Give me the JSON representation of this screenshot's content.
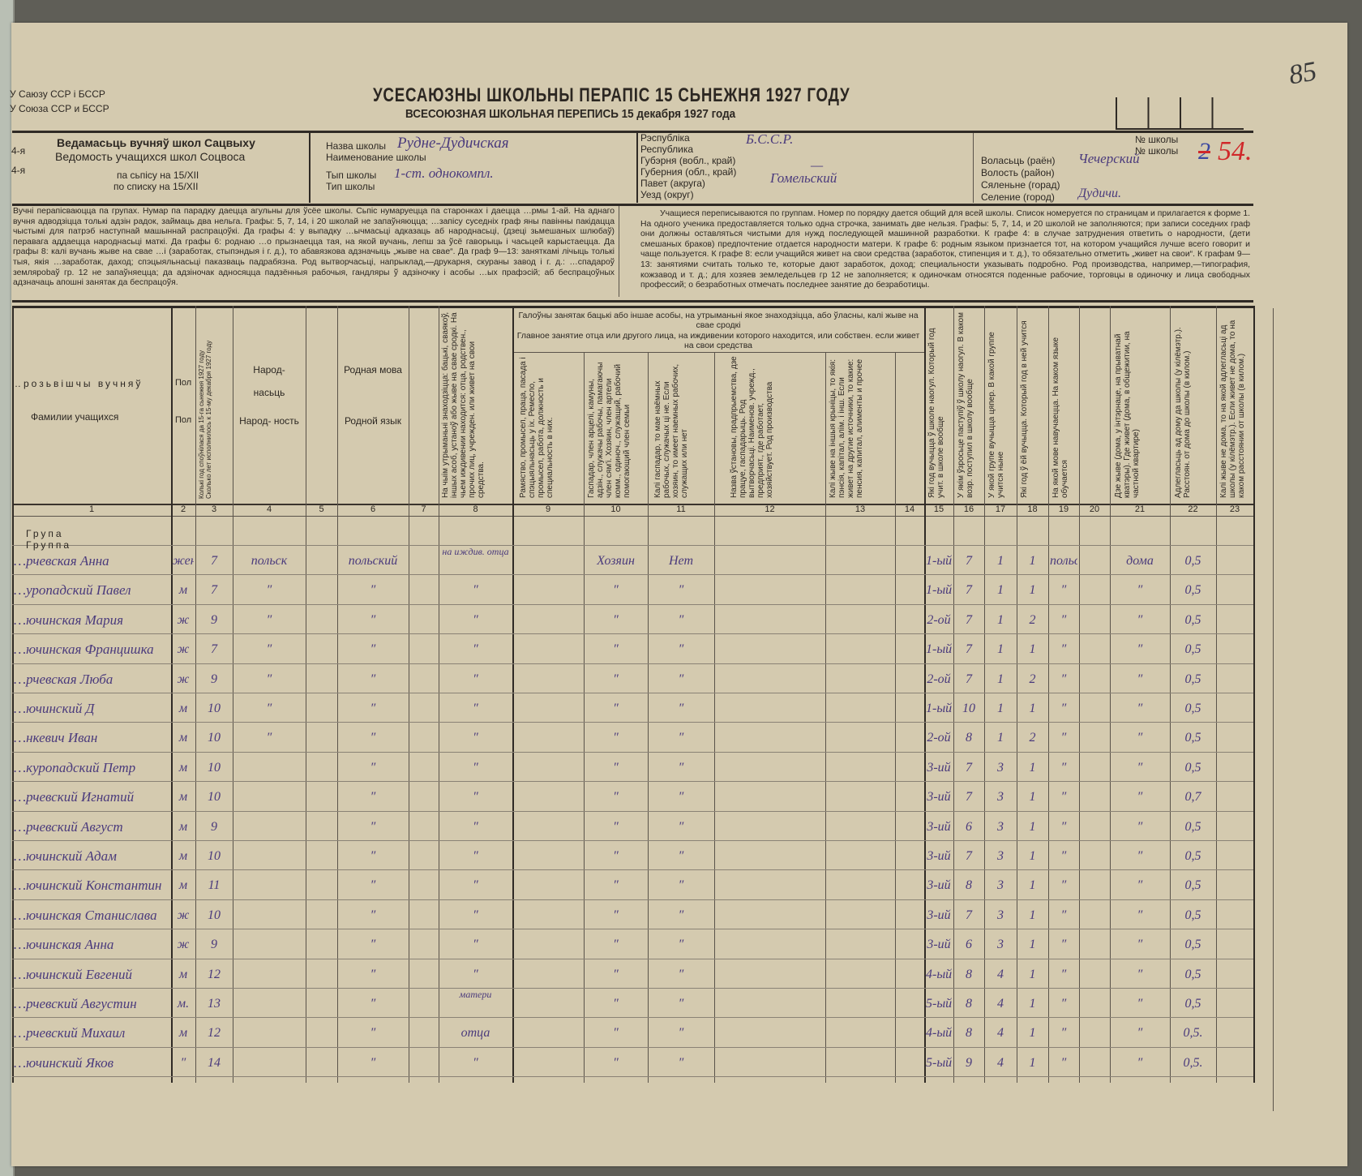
{
  "header": {
    "union_by": "У Саюзу ССР і БССР",
    "union_ru": "У Союза ССР и БССР",
    "title_by": "УСЕСАЮЗНЫ ШКОЛЬНЫ ПЕРАПІС 15 СЬНЕЖНЯ 1927 ГОДУ",
    "title_ru": "ВСЕСОЮЗНАЯ ШКОЛЬНАЯ ПЕРЕПИСЬ 15 декабря 1927 года",
    "page_number": "85"
  },
  "form": {
    "margin_by": "4-я",
    "margin_ru": "4-я",
    "label_by": "Ведамасьць вучняў школ Сацвыху",
    "label_ru": "Ведомость учащихся школ Соцвоса",
    "list_by": "па сьпісу на 15/XII",
    "list_ru": "по списку на 15/XII"
  },
  "school": {
    "name_by": "Назва школы",
    "name_ru": "Наименование школы",
    "name_value": "Рудне-Дудичская",
    "type_by": "Тып школы",
    "type_ru": "Тип школы",
    "type_value": "1-ст. однокомпл."
  },
  "region": {
    "republic_by": "Рэспубліка",
    "republic_ru": "Республика",
    "republic_value": "Б.С.С.Р.",
    "gub_by": "Губэрня (вобл., край)",
    "gub_ru": "Губерния (обл., край)",
    "gub_value": "—",
    "povet_by": "Павет (акруга)",
    "povet_ru": "Уезд (округ)",
    "povet_value": "Гомельский"
  },
  "locality": {
    "no_by": "№ школы",
    "no_ru": "№ школы",
    "no_struck": "2",
    "no_value": "54.",
    "volost_by": "Воласьць (раён)",
    "volost_ru": "Волость (район)",
    "volost_value": "Чечерский",
    "village_by": "Сяленьне (горад)",
    "village_ru": "Селение (город)",
    "village_value": "Дудичи."
  },
  "instructions": {
    "by": "Вучні перапісваюцца па групах. Нумар па парадку даецца агульны для ўсёе школы. Сьпіс нумаруецца па старонках і даецца …рмы 1-ай. На аднаго вучня адводзіцца толькі адзін радок, займаць два нельга. Графы: 5, 7, 14, і 20 школай не запаўняюцца; …запісу суседніх граф яны павінны пакідацца чыстымі для патрэб наступнай машыннай распрацоўкі. Да графы 4: у выпадку …ычмасьці адказаць аб народнасьці, (дзеці зьмешаных шлюбаў) перавага аддаецца народнасьці маткі. Да графы 6: роднаю …о прызнаецца тая, на якой вучань, лепш за ўсё гаворыць і часьцей карыстаецца. Да графы 8: калі вучань жыве на свае …і (заработак, стыпэндыя і г. д.), то абавязкова адзначыць „жыве на свае“. Да граф 9—13: заняткамі лічыць толькі тыя, якія …заработак, даход; спэцыяльнасьці паказваць падрабязна. Род вытворчасьці, напрыклад,—друкарня, скураны завод і г. д.: …спадароў землярobаў гр. 12 не запаўняецца; да адзіночак адносяцца падзённыя рабочыя, гандляры ў адзіночку і асобы …ых прафэсій; аб беспрацоўных адзначаць апошні занятак да беспрацоўя.",
    "ru": "Учащиеся переписываются по группам. Номер по порядку дается общий для всей школы. Список номеруется по страницам и прилагается к форме 1. На одного ученика предоставляется только одна строчка, занимать две нельзя. Графы: 5, 7, 14, и 20 школой не заполняются; при записи соседних граф они должны оставляться чистыми для нужд последующей машинной разработки. К графе 4: в случае затруднения ответить о народности, (дети смешаных браков) предпочтение отдается народности матери. К графе 6: родным языком признается тот, на котором учащийся лучше всего говорит и чаще пользуется. К графе 8: если учащийся живет на свои средства (заработок, стипенция и т. д.), то обязательно отметить „живет на свои“. К графам 9—13: занятиями считать только те, которые дают заработок, доход; специальности указывать подробно. Род производства, например,—типография, кожзавод и т. д.; для хозяев земледельцев гр 12 не заполняется; к одиночкам относятся поденные рабочие, торговцы в одиночку и лица свободных профессий; о безработных отмечать последнее занятие до безработицы."
  },
  "columns": {
    "c1_by": "…розьвішчы вучняў",
    "c1_ru": "Фамилии учащихся",
    "c2_by": "Пол",
    "c2_ru": "Пол",
    "c3": "Колькі год споўнілася да 15-га сьнежня 1927 году Сколько лет исполнилось к 15-му декабря 1927 году",
    "c4_by": "Народ- насьць",
    "c4_ru": "Народ- ность",
    "c6_by": "Родная мова",
    "c6_ru": "Родной язык",
    "c8": "На чыім утрыманьні знаходзіцца: бацькі, сваякоў, іншых асоб, устаноў або жыве на свае сродкі. На чьем иждивении находится: отца, родствен., прочих лиц, учрежден. или живет на свои средства.",
    "group_by": "Галоўны занятак бацькі або іншае асобы, на утрыманьні якое знаходзіцца, або ўласны, калі жыве на свае сродкі",
    "group_ru": "Главное занятие отца или другого лица, на иждивении которого находится, или собствен. если живет на свои средства",
    "c9": "Рамяство, промысел, праца, пасада і спэцыяльнасьць у іх. Ремесло, промысел, работа, должность и специальность в них.",
    "c10": "Гаспадар, член арцелі, камуны, адзін., служачы рабочы, памагаючы член сям'і. Хозяин, член артели комм., одиноч., служащий, рабочий помогающий член семьи",
    "c11": "Калі гаспадар, то мае наёмных рабочых, служачых ці не. Если хозяин, то имеет наемных рабочих, служащих или нет",
    "c12": "Назва ўстановы, прадпрыемства, дзе працуе, гаспадарыць. Род вытворчасьці. Наименов. учрежд., предприят., где работает, хозяйствует. Род производства",
    "c13": "Калі жыве на іншыя крыніцы, то якія: пэнсія, капітал, алім. і інш. Если живет на другие источники, то какие: пенсия, капитал, алименты и прочее",
    "c15": "Які год вучыцца ў школе наогул. Который год учит. в школе вообще",
    "c16": "У якім ўзросьце паступіў ў школу наогул. В каком возр. поступил в школу вообще",
    "c17": "У якой групе вучыцца цяпер. В какой группе учится ныне",
    "c18": "Які год ў ёй вучыцца. Который год в ней учится",
    "c19": "На якой мове навучаецца. На каком языке обучается",
    "c21": "Дзе жыве (дома, у інтэрнаце, на прыватнай кватэры). Где живет (дома, в общежитии, на частной квартире)",
    "c22": "Адлегласьць ад дому да школы (у кілёмэтр.). Расстоян. от дома до школы (в килом.)",
    "c23": "Калі жыве не дома, то на якой адлегласьці ад школы (у кілёмэтр.). Если живет не дома, то на каком расстоянии от школы (в килом.)",
    "numbers": [
      "1",
      "2",
      "3",
      "4",
      "5",
      "6",
      "7",
      "8",
      "9",
      "10",
      "11",
      "12",
      "13",
      "14",
      "15",
      "16",
      "17",
      "18",
      "19",
      "20",
      "21",
      "22",
      "23"
    ]
  },
  "group_label_by": "Група",
  "group_label_ru": "Группа",
  "rows": [
    {
      "name": "…рчевская Анна",
      "sex": "жен",
      "age": "7",
      "nat": "польск",
      "lang": "польский",
      "c8": "на иждив. отца",
      "c10": "Хозяин",
      "c11": "Нет",
      "c15": "1-ый",
      "c16": "7",
      "c17": "1",
      "c18": "1",
      "c19": "польск",
      "c21": "дома",
      "c22": "0,5"
    },
    {
      "name": "…уропадский Павел",
      "sex": "м",
      "age": "7",
      "nat": "″",
      "lang": "″",
      "c8": "″",
      "c10": "″",
      "c11": "″",
      "c15": "1-ый",
      "c16": "7",
      "c17": "1",
      "c18": "1",
      "c19": "″",
      "c21": "″",
      "c22": "0,5"
    },
    {
      "name": "…ючинская Мария",
      "sex": "ж",
      "age": "9",
      "nat": "″",
      "lang": "″",
      "c8": "″",
      "c10": "″",
      "c11": "″",
      "c15": "2-ой",
      "c16": "7",
      "c17": "1",
      "c18": "2",
      "c19": "″",
      "c21": "″",
      "c22": "0,5"
    },
    {
      "name": "…ючинская Францишка",
      "sex": "ж",
      "age": "7",
      "nat": "″",
      "lang": "″",
      "c8": "″",
      "c10": "″",
      "c11": "″",
      "c15": "1-ый",
      "c16": "7",
      "c17": "1",
      "c18": "1",
      "c19": "″",
      "c21": "″",
      "c22": "0,5"
    },
    {
      "name": "…рчевская Люба",
      "sex": "ж",
      "age": "9",
      "nat": "″",
      "lang": "″",
      "c8": "″",
      "c10": "″",
      "c11": "″",
      "c15": "2-ой",
      "c16": "7",
      "c17": "1",
      "c18": "2",
      "c19": "″",
      "c21": "″",
      "c22": "0,5"
    },
    {
      "name": "…ючинский Д",
      "sex": "м",
      "age": "10",
      "nat": "″",
      "lang": "″",
      "c8": "″",
      "c10": "″",
      "c11": "″",
      "c15": "1-ый",
      "c16": "10",
      "c17": "1",
      "c18": "1",
      "c19": "″",
      "c21": "″",
      "c22": "0,5"
    },
    {
      "name": "…нкевич Иван",
      "sex": "м",
      "age": "10",
      "nat": "″",
      "lang": "″",
      "c8": "″",
      "c10": "″",
      "c11": "″",
      "c15": "2-ой",
      "c16": "8",
      "c17": "1",
      "c18": "2",
      "c19": "″",
      "c21": "″",
      "c22": "0,5"
    },
    {
      "name": "…куропадский Петр",
      "sex": "м",
      "age": "10",
      "nat": "",
      "lang": "″",
      "c8": "″",
      "c10": "″",
      "c11": "″",
      "c15": "3-ий",
      "c16": "7",
      "c17": "3",
      "c18": "1",
      "c19": "″",
      "c21": "″",
      "c22": "0,5"
    },
    {
      "name": "…рчевский Игнатий",
      "sex": "м",
      "age": "10",
      "nat": "",
      "lang": "″",
      "c8": "″",
      "c10": "″",
      "c11": "″",
      "c15": "3-ий",
      "c16": "7",
      "c17": "3",
      "c18": "1",
      "c19": "″",
      "c21": "″",
      "c22": "0,7"
    },
    {
      "name": "…рчевский Август",
      "sex": "м",
      "age": "9",
      "nat": "",
      "lang": "″",
      "c8": "″",
      "c10": "″",
      "c11": "″",
      "c15": "3-ий",
      "c16": "6",
      "c17": "3",
      "c18": "1",
      "c19": "″",
      "c21": "″",
      "c22": "0,5"
    },
    {
      "name": "…ючинский Адам",
      "sex": "м",
      "age": "10",
      "nat": "",
      "lang": "″",
      "c8": "″",
      "c10": "″",
      "c11": "″",
      "c15": "3-ий",
      "c16": "7",
      "c17": "3",
      "c18": "1",
      "c19": "″",
      "c21": "″",
      "c22": "0,5"
    },
    {
      "name": "…ючинский Константин",
      "sex": "м",
      "age": "11",
      "nat": "",
      "lang": "″",
      "c8": "″",
      "c10": "″",
      "c11": "″",
      "c15": "3-ий",
      "c16": "8",
      "c17": "3",
      "c18": "1",
      "c19": "″",
      "c21": "″",
      "c22": "0,5"
    },
    {
      "name": "…ючинская Станислава",
      "sex": "ж",
      "age": "10",
      "nat": "",
      "lang": "″",
      "c8": "″",
      "c10": "″",
      "c11": "″",
      "c15": "3-ий",
      "c16": "7",
      "c17": "3",
      "c18": "1",
      "c19": "″",
      "c21": "″",
      "c22": "0,5"
    },
    {
      "name": "…ючинская Анна",
      "sex": "ж",
      "age": "9",
      "nat": "",
      "lang": "″",
      "c8": "″",
      "c10": "″",
      "c11": "″",
      "c15": "3-ий",
      "c16": "6",
      "c17": "3",
      "c18": "1",
      "c19": "″",
      "c21": "″",
      "c22": "0,5"
    },
    {
      "name": "…ючинский Евгений",
      "sex": "м",
      "age": "12",
      "nat": "",
      "lang": "″",
      "c8": "″",
      "c10": "″",
      "c11": "″",
      "c15": "4-ый",
      "c16": "8",
      "c17": "4",
      "c18": "1",
      "c19": "″",
      "c21": "″",
      "c22": "0,5"
    },
    {
      "name": "…рчевский Августин",
      "sex": "м.",
      "age": "13",
      "nat": "",
      "lang": "″",
      "c8": "матери",
      "c10": "″",
      "c11": "″",
      "c15": "5-ый",
      "c16": "8",
      "c17": "4",
      "c18": "1",
      "c19": "″",
      "c21": "″",
      "c22": "0,5"
    },
    {
      "name": "…рчевский Михаил",
      "sex": "м",
      "age": "12",
      "nat": "",
      "lang": "″",
      "c8": "отца",
      "c10": "″",
      "c11": "″",
      "c15": "4-ый",
      "c16": "8",
      "c17": "4",
      "c18": "1",
      "c19": "″",
      "c21": "″",
      "c22": "0,5."
    },
    {
      "name": "…ючинский Яков",
      "sex": "″",
      "age": "14",
      "nat": "",
      "lang": "″",
      "c8": "″",
      "c10": "″",
      "c11": "″",
      "c15": "5-ый",
      "c16": "9",
      "c17": "4",
      "c18": "1",
      "c19": "″",
      "c21": "″",
      "c22": "0,5."
    }
  ],
  "colors": {
    "paper": "#d4caaf",
    "ink": "#4a3a7c",
    "print": "#2c2722",
    "red_ink": "#d0282a"
  }
}
